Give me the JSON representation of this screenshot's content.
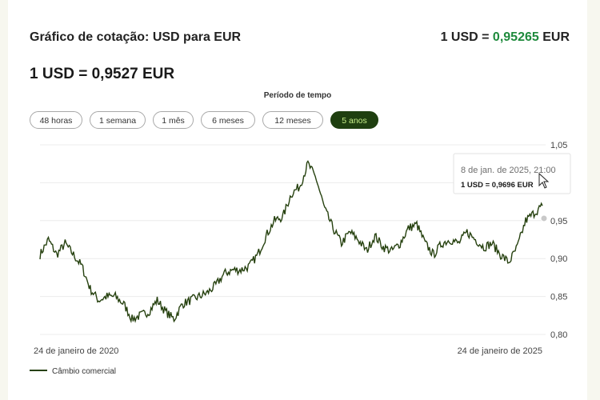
{
  "header": {
    "title": "Gráfico de cotação: USD para EUR",
    "rate_prefix": "1 USD = ",
    "rate_value": "0,95265",
    "rate_suffix": " EUR"
  },
  "current_rate": "1 USD = 0,9527 EUR",
  "period": {
    "label": "Período de tempo",
    "options": [
      "48 horas",
      "1 semana",
      "1 mês",
      "6 meses",
      "12 meses",
      "5 anos"
    ],
    "selected": "5 anos"
  },
  "tooltip": {
    "date": "8 de jan. de 2025, 21:00",
    "value": "1 USD = 0,9696 EUR"
  },
  "legend": {
    "label": "Câmbio comercial"
  },
  "colors": {
    "line": "#26410f",
    "accent_green": "#1e8a3c",
    "active_pill": "#1f3f10",
    "active_pill_text": "#c8f08a"
  },
  "chart_data": {
    "type": "line",
    "title": "",
    "xlabel": "",
    "ylabel": "",
    "x_tick_labels": [
      "24 de janeiro de 2020",
      "24 de janeiro de 2025"
    ],
    "y_ticks": [
      "1,05",
      "1,00",
      "0,95",
      "0,90",
      "0,85",
      "0,80"
    ],
    "ylim": [
      0.8,
      1.05
    ],
    "grid": true,
    "legend_position": "bottom-left",
    "series": [
      {
        "name": "Câmbio comercial",
        "x": [
          "2020-01",
          "2020-02",
          "2020-03",
          "2020-04",
          "2020-05",
          "2020-06",
          "2020-07",
          "2020-08",
          "2020-09",
          "2020-10",
          "2020-11",
          "2020-12",
          "2021-01",
          "2021-02",
          "2021-03",
          "2021-04",
          "2021-05",
          "2021-06",
          "2021-07",
          "2021-08",
          "2021-09",
          "2021-10",
          "2021-11",
          "2021-12",
          "2022-01",
          "2022-02",
          "2022-03",
          "2022-04",
          "2022-05",
          "2022-06",
          "2022-07",
          "2022-08",
          "2022-09",
          "2022-10",
          "2022-11",
          "2022-12",
          "2023-01",
          "2023-02",
          "2023-03",
          "2023-04",
          "2023-05",
          "2023-06",
          "2023-07",
          "2023-08",
          "2023-09",
          "2023-10",
          "2023-11",
          "2023-12",
          "2024-01",
          "2024-02",
          "2024-03",
          "2024-04",
          "2024-05",
          "2024-06",
          "2024-07",
          "2024-08",
          "2024-09",
          "2024-10",
          "2024-11",
          "2024-12",
          "2025-01"
        ],
        "values": [
          0.905,
          0.925,
          0.905,
          0.92,
          0.905,
          0.89,
          0.86,
          0.845,
          0.85,
          0.85,
          0.84,
          0.82,
          0.825,
          0.83,
          0.845,
          0.83,
          0.82,
          0.84,
          0.845,
          0.85,
          0.855,
          0.865,
          0.88,
          0.885,
          0.885,
          0.89,
          0.905,
          0.93,
          0.95,
          0.955,
          0.985,
          0.995,
          1.025,
          1.005,
          0.965,
          0.94,
          0.92,
          0.935,
          0.925,
          0.91,
          0.93,
          0.915,
          0.91,
          0.92,
          0.94,
          0.945,
          0.92,
          0.905,
          0.92,
          0.925,
          0.92,
          0.935,
          0.925,
          0.915,
          0.92,
          0.905,
          0.895,
          0.915,
          0.95,
          0.96,
          0.9696
        ]
      }
    ]
  }
}
